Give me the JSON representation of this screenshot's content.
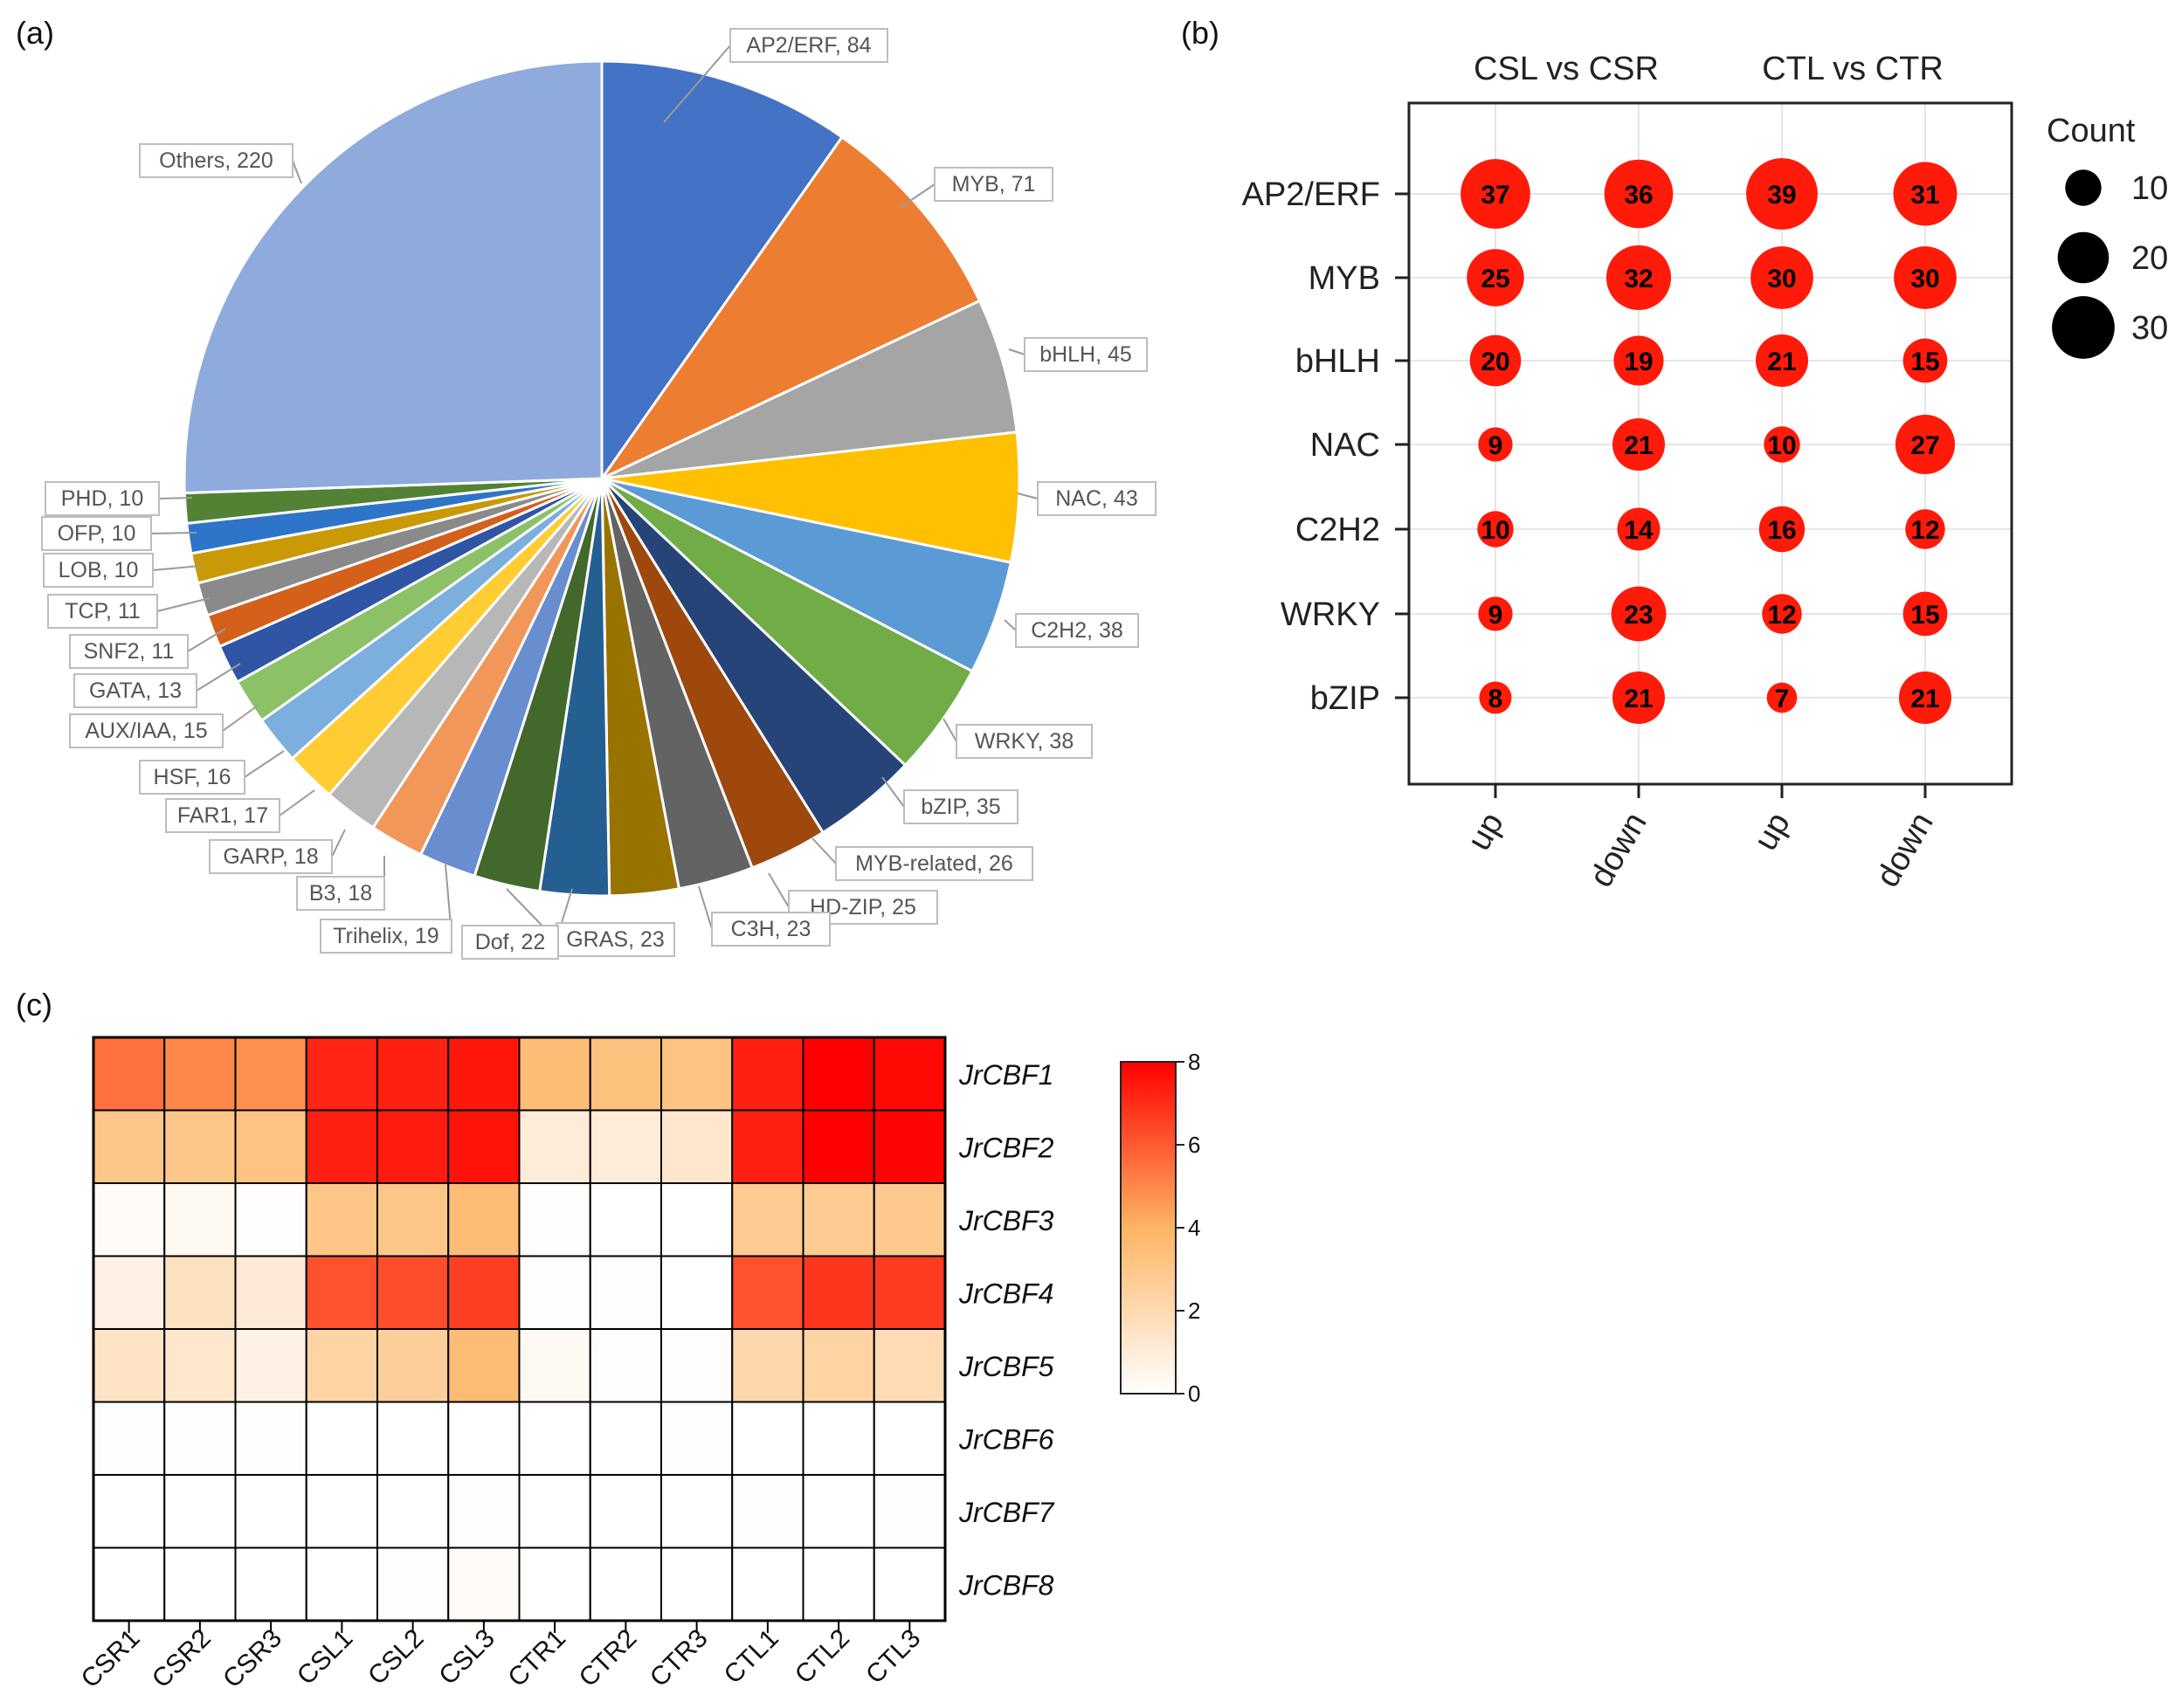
{
  "colors": {
    "bubble": "#ff1a0a",
    "heat_low": "#ffffff",
    "heat_mid": "#fdb463",
    "heat_high": "#ff0000"
  },
  "chart_data": [
    {
      "panel": "(a)",
      "type": "pie",
      "slices": [
        {
          "label": "AP2/ERF",
          "value": 84,
          "text": "AP2/ERF, 84",
          "color": "#4472c4"
        },
        {
          "label": "MYB",
          "value": 71,
          "text": "MYB, 71",
          "color": "#ed7d31"
        },
        {
          "label": "bHLH",
          "value": 45,
          "text": "bHLH, 45",
          "color": "#a5a5a5"
        },
        {
          "label": "NAC",
          "value": 43,
          "text": "NAC, 43",
          "color": "#ffc000"
        },
        {
          "label": "C2H2",
          "value": 38,
          "text": "C2H2, 38",
          "color": "#5b9bd5"
        },
        {
          "label": "WRKY",
          "value": 38,
          "text": "WRKY, 38",
          "color": "#70ad47"
        },
        {
          "label": "bZIP",
          "value": 35,
          "text": "bZIP, 35",
          "color": "#264478"
        },
        {
          "label": "MYB-related",
          "value": 26,
          "text": "MYB-related, 26",
          "color": "#9e480e"
        },
        {
          "label": "HD-ZIP",
          "value": 25,
          "text": "HD-ZIP, 25",
          "color": "#636363"
        },
        {
          "label": "C3H",
          "value": 23,
          "text": "C3H, 23",
          "color": "#997300"
        },
        {
          "label": "GRAS",
          "value": 23,
          "text": "GRAS, 23",
          "color": "#255e91"
        },
        {
          "label": "Dof",
          "value": 22,
          "text": "Dof, 22",
          "color": "#43682b"
        },
        {
          "label": "Trihelix",
          "value": 19,
          "text": "Trihelix, 19",
          "color": "#698ed0"
        },
        {
          "label": "B3",
          "value": 18,
          "text": "B3, 18",
          "color": "#f1975a"
        },
        {
          "label": "GARP",
          "value": 18,
          "text": "GARP, 18",
          "color": "#b7b7b7"
        },
        {
          "label": "FAR1",
          "value": 17,
          "text": "FAR1, 17",
          "color": "#ffcd33"
        },
        {
          "label": "HSF",
          "value": 16,
          "text": "HSF, 16",
          "color": "#7cafdd"
        },
        {
          "label": "AUX/IAA",
          "value": 15,
          "text": "AUX/IAA, 15",
          "color": "#8cc168"
        },
        {
          "label": "GATA",
          "value": 13,
          "text": "GATA, 13",
          "color": "#2f55a4"
        },
        {
          "label": "SNF2",
          "value": 11,
          "text": "SNF2, 11",
          "color": "#d4601a"
        },
        {
          "label": "TCP",
          "value": 11,
          "text": "TCP, 11",
          "color": "#8a8a8a"
        },
        {
          "label": "LOB",
          "value": 10,
          "text": "LOB, 10",
          "color": "#c99a06"
        },
        {
          "label": "OFP",
          "value": 10,
          "text": "OFP, 10",
          "color": "#2e75c9"
        },
        {
          "label": "PHD",
          "value": 10,
          "text": "PHD, 10",
          "color": "#548235"
        },
        {
          "label": "Others",
          "value": 220,
          "text": "Others, 220",
          "color": "#8faadc"
        }
      ]
    },
    {
      "panel": "(b)",
      "type": "scatter",
      "subtype": "bubble",
      "group_titles": [
        "CSL vs CSR",
        "CTL vs CTR"
      ],
      "x_categories": [
        "up",
        "down",
        "up",
        "down"
      ],
      "y_categories": [
        "AP2/ERF",
        "MYB",
        "bHLH",
        "NAC",
        "C2H2",
        "WRKY",
        "bZIP"
      ],
      "values": [
        [
          37,
          36,
          39,
          31
        ],
        [
          25,
          32,
          30,
          30
        ],
        [
          20,
          19,
          21,
          15
        ],
        [
          9,
          21,
          10,
          27
        ],
        [
          10,
          14,
          16,
          12
        ],
        [
          9,
          23,
          12,
          15
        ],
        [
          8,
          21,
          7,
          21
        ]
      ],
      "legend": {
        "title": "Count",
        "sizes": [
          10,
          20,
          30
        ],
        "position": "right"
      }
    },
    {
      "panel": "(c)",
      "type": "heatmap",
      "columns": [
        "CSR1",
        "CSR2",
        "CSR3",
        "CSL1",
        "CSL2",
        "CSL3",
        "CTR1",
        "CTR2",
        "CTR3",
        "CTL1",
        "CTL2",
        "CTL3"
      ],
      "rows": [
        "JrCBF1",
        "JrCBF2",
        "JrCBF3",
        "JrCBF4",
        "JrCBF5",
        "JrCBF6",
        "JrCBF7",
        "JrCBF8"
      ],
      "values": [
        [
          5.5,
          5.0,
          4.8,
          7.2,
          7.3,
          7.5,
          3.5,
          3.3,
          3.2,
          7.3,
          8.0,
          7.8
        ],
        [
          3.0,
          3.0,
          3.2,
          7.3,
          7.4,
          7.6,
          1.0,
          1.0,
          1.3,
          7.3,
          8.0,
          7.9
        ],
        [
          0.2,
          0.3,
          0.1,
          3.1,
          3.0,
          3.5,
          0.1,
          0.0,
          0.0,
          2.8,
          2.8,
          2.9
        ],
        [
          0.7,
          1.6,
          1.1,
          6.2,
          6.3,
          6.6,
          0.1,
          0.1,
          0.0,
          6.2,
          6.8,
          6.7
        ],
        [
          1.5,
          1.3,
          0.7,
          2.3,
          2.6,
          3.6,
          0.3,
          0.1,
          0.1,
          2.1,
          2.3,
          1.9
        ],
        [
          0.1,
          0.1,
          0.1,
          0.0,
          0.0,
          0.0,
          0.0,
          0.0,
          0.1,
          0.0,
          0.0,
          0.0
        ],
        [
          0.0,
          0.0,
          0.0,
          0.0,
          0.0,
          0.1,
          0.0,
          0.0,
          0.0,
          0.1,
          0.0,
          0.1
        ],
        [
          0.0,
          0.0,
          0.0,
          0.0,
          0.1,
          0.2,
          0.0,
          0.0,
          0.0,
          0.0,
          0.0,
          0.0
        ]
      ],
      "colorbar": {
        "min": 0,
        "max": 8,
        "ticks": [
          "0",
          "2",
          "4",
          "6",
          "8"
        ]
      }
    }
  ]
}
